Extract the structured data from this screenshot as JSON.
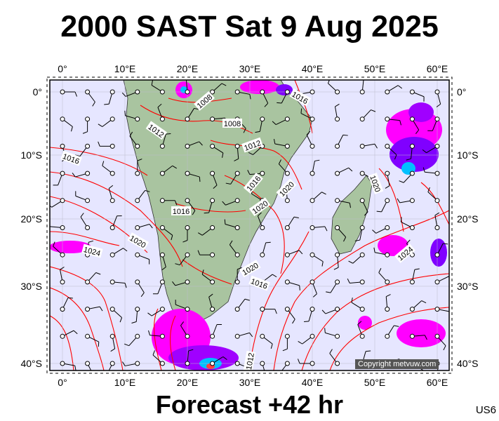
{
  "title": "2000 SAST Sat 9 Aug 2025",
  "footer": "Forecast +42 hr",
  "code": "US6",
  "copyright": "Copyright metvuw.com",
  "lon_labels": [
    "0°",
    "10°E",
    "20°E",
    "30°E",
    "40°E",
    "50°E",
    "60°E"
  ],
  "lat_labels": [
    "0°",
    "10°S",
    "20°S",
    "30°S",
    "40°S"
  ],
  "isobar_labels": [
    "1008",
    "1008",
    "1012",
    "1012",
    "1016",
    "1016",
    "1016",
    "1016",
    "1016",
    "1020",
    "1020",
    "1020",
    "1020",
    "1020",
    "1024",
    "1024",
    "1012"
  ],
  "colors": {
    "sea": "#e6e6ff",
    "land": "#a9c4a0",
    "isobar": "#ff0000",
    "rain_light": "#ff00ff",
    "rain_mid": "#8000ff",
    "rain_heavy": "#00c0ff"
  }
}
